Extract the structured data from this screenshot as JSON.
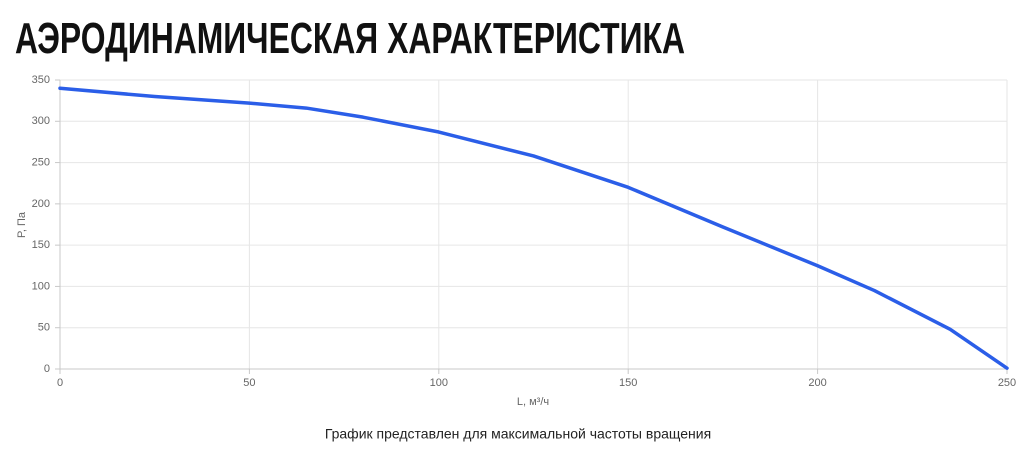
{
  "chart_data": {
    "type": "line",
    "title": "АЭРОДИНАМИЧЕСКАЯ ХАРАКТЕРИСТИКА",
    "caption": "График представлен для максимальной частоты вращения",
    "x_label": "L, м³/ч",
    "y_label": "P, Па",
    "x": [
      0,
      25,
      50,
      65,
      80,
      100,
      125,
      150,
      175,
      200,
      215,
      235,
      250
    ],
    "series": [
      {
        "color": "#2b5ee8",
        "values": [
          340,
          330,
          322,
          316,
          305,
          287,
          258,
          220,
          172,
          125,
          95,
          48,
          1
        ]
      }
    ],
    "xlim": [
      0,
      250
    ],
    "xticks": [
      0,
      50,
      100,
      150,
      200,
      250
    ],
    "ylim": [
      0,
      350
    ],
    "yticks": [
      0,
      50,
      100,
      150,
      200,
      250,
      300,
      350
    ],
    "grid": true
  }
}
